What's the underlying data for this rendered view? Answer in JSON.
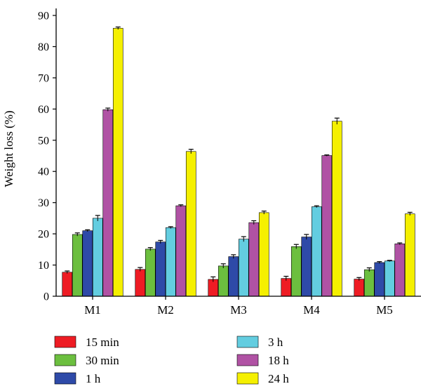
{
  "chart_data": {
    "type": "bar",
    "categories": [
      "M1",
      "M2",
      "M3",
      "M4",
      "M5"
    ],
    "ylabel": "Weight loss (%)",
    "xlabel": "",
    "ylim": [
      0,
      90
    ],
    "yticks": [
      0,
      10,
      20,
      30,
      40,
      50,
      60,
      70,
      80,
      90
    ],
    "grid": false,
    "legend_position": "bottom",
    "error_bars": true,
    "series": [
      {
        "name": "15 min",
        "color": "#ee1c24",
        "values": [
          7.7,
          8.6,
          5.4,
          5.7,
          5.5
        ],
        "errors": [
          0.4,
          0.6,
          0.8,
          0.7,
          0.5
        ]
      },
      {
        "name": "30 min",
        "color": "#6cbf3f",
        "values": [
          19.8,
          15.1,
          9.7,
          15.9,
          8.5
        ],
        "errors": [
          0.5,
          0.5,
          0.7,
          0.7,
          0.6
        ]
      },
      {
        "name": "1 h",
        "color": "#2e4aa8",
        "values": [
          21.0,
          17.4,
          12.7,
          19.0,
          10.8
        ],
        "errors": [
          0.3,
          0.5,
          0.6,
          0.8,
          0.3
        ]
      },
      {
        "name": "3 h",
        "color": "#63cde0",
        "values": [
          25.0,
          22.0,
          18.3,
          28.7,
          11.3
        ],
        "errors": [
          0.9,
          0.3,
          0.8,
          0.3,
          0.2
        ]
      },
      {
        "name": "18 h",
        "color": "#b052a4",
        "values": [
          59.8,
          29.0,
          23.6,
          45.1,
          16.8
        ],
        "errors": [
          0.5,
          0.3,
          0.6,
          0.2,
          0.3
        ]
      },
      {
        "name": "24 h",
        "color": "#f5f000",
        "values": [
          85.9,
          46.4,
          26.8,
          56.1,
          26.4
        ],
        "errors": [
          0.4,
          0.7,
          0.5,
          1.0,
          0.5
        ]
      }
    ]
  }
}
